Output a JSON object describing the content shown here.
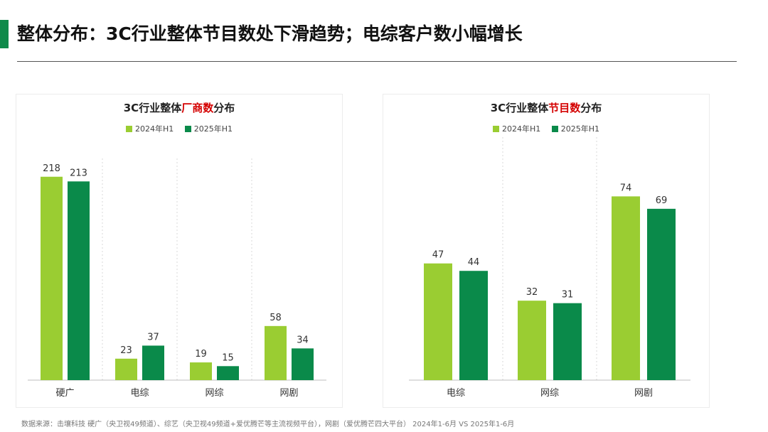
{
  "page": {
    "title": "整体分布：3C行业整体节目数处下滑趋势；电综客户数小幅增长",
    "footnote": "数据来源：击壤科技 硬广（央卫视49频道）、综艺（央卫视49频道+爱优腾芒等主流视频平台），网剧（爱优腾芒四大平台） 2024年1-6月 VS 2025年1-6月",
    "colors": {
      "accent": "#0f8a4a",
      "highlight": "#d40000"
    }
  },
  "chart_data": [
    {
      "type": "bar",
      "title": {
        "prefix": "3C行业整体",
        "highlight": "厂商数",
        "suffix": "分布"
      },
      "categories": [
        "硬广",
        "电综",
        "网综",
        "网剧"
      ],
      "series": [
        {
          "name": "2024年H1",
          "color": "#9acd32",
          "values": [
            218,
            23,
            19,
            58
          ]
        },
        {
          "name": "2025年H1",
          "color": "#0a8a4a",
          "values": [
            213,
            37,
            15,
            34
          ]
        }
      ],
      "ylim": [
        0,
        230
      ],
      "legend": "top-center",
      "grid": "vertical-dashed"
    },
    {
      "type": "bar",
      "title": {
        "prefix": "3C行业整体",
        "highlight": "节目数",
        "suffix": "分布"
      },
      "categories": [
        "电综",
        "网综",
        "网剧"
      ],
      "series": [
        {
          "name": "2024年H1",
          "color": "#9acd32",
          "values": [
            47,
            32,
            74
          ]
        },
        {
          "name": "2025年H1",
          "color": "#0a8a4a",
          "values": [
            44,
            31,
            69
          ]
        }
      ],
      "ylim": [
        0,
        95
      ],
      "legend": "top-center",
      "grid": "vertical-dashed"
    }
  ]
}
